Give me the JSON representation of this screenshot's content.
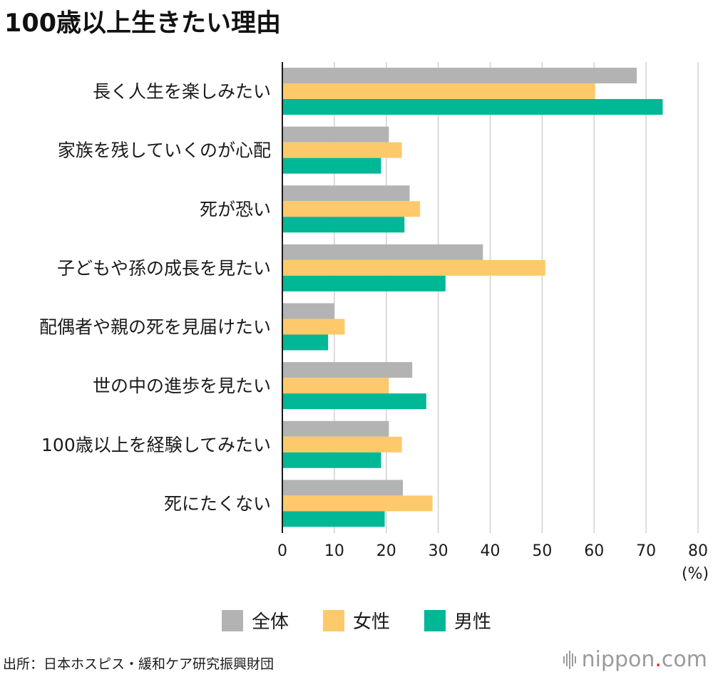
{
  "chart_data": {
    "type": "bar",
    "orientation": "horizontal",
    "title": "100歳以上生きたい理由",
    "categories": [
      "長く人生を楽しみたい",
      "家族を残していくのが心配",
      "死が恐い",
      "子どもや孫の成長を見たい",
      "配偶者や親の死を見届けたい",
      "世の中の進歩を見たい",
      "100歳以上を経験してみたい",
      "死にたくない"
    ],
    "series": [
      {
        "name": "全体",
        "color": "#b3b3b3",
        "values": [
          68.2,
          20.5,
          24.5,
          38.6,
          10.0,
          25.0,
          20.5,
          23.2
        ]
      },
      {
        "name": "女性",
        "color": "#fdc96b",
        "values": [
          60.2,
          23.0,
          26.5,
          50.6,
          12.0,
          20.5,
          23.0,
          28.9
        ]
      },
      {
        "name": "男性",
        "color": "#00b796",
        "values": [
          73.2,
          19.0,
          23.5,
          31.4,
          8.8,
          27.7,
          19.0,
          19.7
        ]
      }
    ],
    "xlim": [
      0,
      80
    ],
    "xticks": [
      0,
      10,
      20,
      30,
      40,
      50,
      60,
      70,
      80
    ],
    "x_unit": "(%)",
    "grid": true,
    "legend": "bottom-center"
  },
  "source": "出所：日本ホスピス・緩和ケア研究振興財団",
  "logo": {
    "brand": "nippon",
    "dot": ".",
    "tld": "com"
  }
}
